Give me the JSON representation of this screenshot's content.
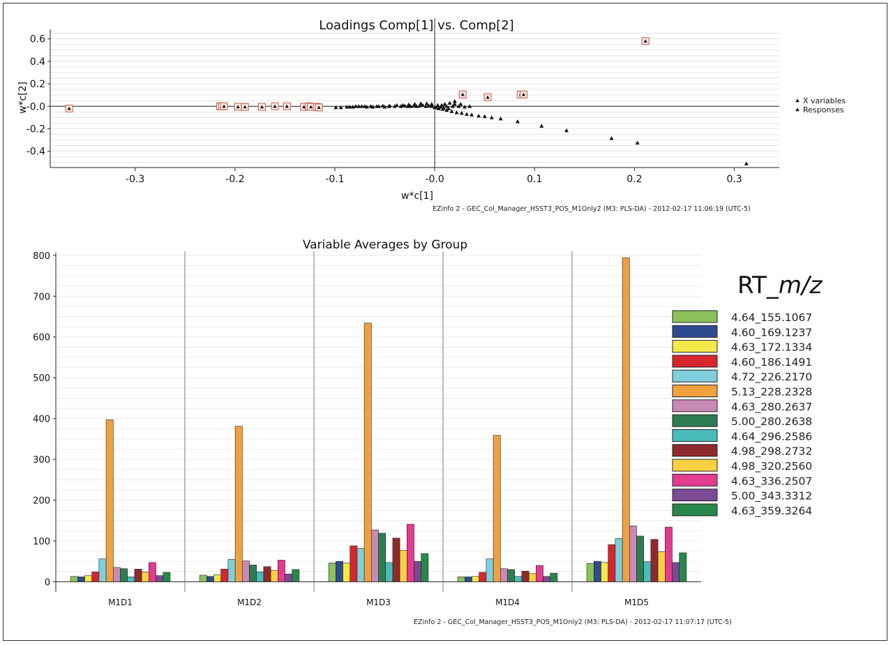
{
  "chart_data": [
    {
      "type": "scatter",
      "title": "Loadings Comp[1] vs. Comp[2]",
      "xlabel": "w*c[1]",
      "ylabel": "w*c[2]",
      "xlim": [
        -0.385,
        0.345
      ],
      "ylim": [
        -0.545,
        0.66
      ],
      "x_ticks": [
        -0.3,
        -0.2,
        -0.1,
        0.0,
        0.1,
        0.2,
        0.3
      ],
      "x_tick_labels": [
        "-0.3",
        "-0.2",
        "-0.1",
        "-0.0",
        "0.1",
        "0.2",
        "0.3"
      ],
      "y_ticks": [
        0.6,
        0.4,
        0.2,
        0.0,
        -0.2,
        -0.4
      ],
      "y_tick_labels": [
        "0.6",
        "0.4",
        "0.2",
        "-0.0",
        "-0.2",
        "-0.4"
      ],
      "grid": true,
      "legend": [
        "X variables",
        "Responses"
      ],
      "legend_placement": "right",
      "series": [
        {
          "name": "X variables",
          "points": [
            [
              0.312,
              -0.51
            ],
            [
              0.203,
              -0.325
            ],
            [
              0.177,
              -0.285
            ],
            [
              0.132,
              -0.215
            ],
            [
              0.107,
              -0.175
            ],
            [
              0.083,
              -0.135
            ],
            [
              0.066,
              -0.11
            ],
            [
              0.057,
              -0.1
            ],
            [
              0.05,
              -0.09
            ],
            [
              0.044,
              -0.085
            ],
            [
              0.037,
              -0.075
            ],
            [
              0.032,
              -0.07
            ],
            [
              0.027,
              -0.06
            ],
            [
              0.022,
              -0.055
            ],
            [
              0.017,
              -0.045
            ],
            [
              0.012,
              -0.035
            ],
            [
              0.008,
              -0.025
            ],
            [
              0.004,
              -0.02
            ],
            [
              0.0,
              -0.01
            ],
            [
              0.006,
              -0.005
            ],
            [
              0.012,
              0.0
            ],
            [
              0.018,
              0.0
            ],
            [
              0.024,
              0.0
            ],
            [
              0.03,
              -0.005
            ],
            [
              0.035,
              0.0
            ],
            [
              0.015,
              0.03
            ],
            [
              0.02,
              0.045
            ],
            [
              0.02,
              0.02
            ],
            [
              0.026,
              0.02
            ],
            [
              0.01,
              0.02
            ],
            [
              -0.003,
              0.02
            ],
            [
              -0.008,
              0.025
            ],
            [
              -0.014,
              0.025
            ],
            [
              -0.02,
              0.02
            ],
            [
              -0.026,
              0.015
            ],
            [
              -0.032,
              0.01
            ],
            [
              -0.038,
              0.01
            ],
            [
              -0.045,
              0.005
            ],
            [
              -0.052,
              0.005
            ],
            [
              -0.058,
              0.0
            ],
            [
              -0.064,
              0.0
            ],
            [
              -0.07,
              0.0
            ],
            [
              -0.076,
              0.0
            ],
            [
              -0.082,
              -0.005
            ],
            [
              -0.088,
              -0.005
            ],
            [
              -0.094,
              -0.01
            ],
            [
              -0.003,
              0.0
            ],
            [
              -0.006,
              0.005
            ],
            [
              -0.009,
              0.0
            ],
            [
              -0.012,
              0.01
            ],
            [
              -0.015,
              0.005
            ],
            [
              -0.018,
              0.0
            ],
            [
              -0.021,
              0.005
            ],
            [
              -0.024,
              0.0
            ],
            [
              -0.027,
              0.0
            ],
            [
              -0.03,
              0.005
            ],
            [
              -0.034,
              0.0
            ],
            [
              -0.04,
              0.0
            ],
            [
              -0.046,
              0.0
            ],
            [
              -0.05,
              -0.005
            ],
            [
              -0.056,
              0.0
            ],
            [
              -0.062,
              -0.005
            ],
            [
              -0.068,
              -0.005
            ],
            [
              -0.073,
              0.0
            ],
            [
              -0.079,
              0.0
            ],
            [
              -0.085,
              -0.005
            ],
            [
              -0.099,
              -0.01
            ],
            [
              0.003,
              0.01
            ],
            [
              0.007,
              0.01
            ],
            [
              0.002,
              -0.01
            ],
            [
              0.014,
              -0.02
            ],
            [
              0.009,
              -0.015
            ]
          ]
        },
        {
          "name": "Responses",
          "points": [
            [
              -0.366,
              -0.02
            ],
            [
              -0.215,
              0.0
            ],
            [
              -0.213,
              0.0
            ],
            [
              -0.211,
              0.0
            ],
            [
              -0.197,
              -0.005
            ],
            [
              -0.19,
              -0.005
            ],
            [
              -0.173,
              -0.005
            ],
            [
              -0.16,
              0.0
            ],
            [
              -0.148,
              0.0
            ],
            [
              -0.131,
              -0.005
            ],
            [
              -0.126,
              0.0
            ],
            [
              -0.124,
              -0.005
            ],
            [
              -0.118,
              -0.005
            ],
            [
              -0.116,
              -0.01
            ],
            [
              0.028,
              0.105
            ],
            [
              0.053,
              0.08
            ],
            [
              0.086,
              0.105
            ],
            [
              0.089,
              0.105
            ],
            [
              0.211,
              0.58
            ]
          ]
        }
      ],
      "footer": "EZinfo 2 - GEC_Col_Manager_HSST3_POS_M1Only2 (M3: PLS-DA) - 2012-02-17 11:06:19 (UTC-5)"
    },
    {
      "type": "bar",
      "title": "Variable Averages by Group",
      "categories": [
        "M1D1",
        "M1D2",
        "M1D3",
        "M1D4",
        "M1D5"
      ],
      "ylim": [
        -25,
        810
      ],
      "y_ticks": [
        0,
        100,
        200,
        300,
        400,
        500,
        600,
        700,
        800
      ],
      "y_tick_labels": [
        "0",
        "100",
        "200",
        "300",
        "400",
        "500",
        "600",
        "700",
        "800"
      ],
      "grid": true,
      "legend_title_plain": "RT_",
      "legend_title_italic": "m/z",
      "legend_placement": "right",
      "series": [
        {
          "name": "4.64_155.1067",
          "color": "#8cc15a",
          "values": [
            13,
            16,
            46,
            12,
            45
          ]
        },
        {
          "name": "4.60_169.1237",
          "color": "#2f4b8f",
          "values": [
            12,
            13,
            50,
            12,
            50
          ]
        },
        {
          "name": "4.63_172.1334",
          "color": "#f4e94a",
          "values": [
            15,
            17,
            46,
            13,
            47
          ]
        },
        {
          "name": "4.60_186.1491",
          "color": "#d8262f",
          "values": [
            24,
            31,
            88,
            23,
            91
          ]
        },
        {
          "name": "4.72_226.2170",
          "color": "#7fd0dc",
          "values": [
            56,
            55,
            82,
            56,
            106
          ]
        },
        {
          "name": "5.13_228.2328",
          "color": "#f0a13f",
          "values": [
            397,
            381,
            634,
            359,
            794
          ]
        },
        {
          "name": "4.63_280.2637",
          "color": "#c98ab5",
          "values": [
            35,
            51,
            127,
            32,
            137
          ]
        },
        {
          "name": "5.00_280.2638",
          "color": "#2e7d52",
          "values": [
            32,
            41,
            119,
            30,
            112
          ]
        },
        {
          "name": "4.64_296.2586",
          "color": "#4bbcbc",
          "values": [
            12,
            24,
            47,
            13,
            49
          ]
        },
        {
          "name": "4.98_298.2732",
          "color": "#8e2a2e",
          "values": [
            31,
            37,
            107,
            26,
            104
          ]
        },
        {
          "name": "4.98_320.2560",
          "color": "#fbd040",
          "values": [
            24,
            28,
            77,
            20,
            74
          ]
        },
        {
          "name": "4.63_336.2507",
          "color": "#e33b8f",
          "values": [
            47,
            53,
            141,
            40,
            134
          ]
        },
        {
          "name": "5.00_343.3312",
          "color": "#7b4a94",
          "values": [
            15,
            19,
            50,
            13,
            47
          ]
        },
        {
          "name": "4.63_359.3264",
          "color": "#27884a",
          "values": [
            23,
            30,
            69,
            21,
            71
          ]
        }
      ],
      "footer": "EZinfo 2 - GEC_Col_Manager_HSST3_POS_M1Only2 (M3: PLS-DA) - 2012-02-17 11:07:17 (UTC-5)"
    }
  ]
}
